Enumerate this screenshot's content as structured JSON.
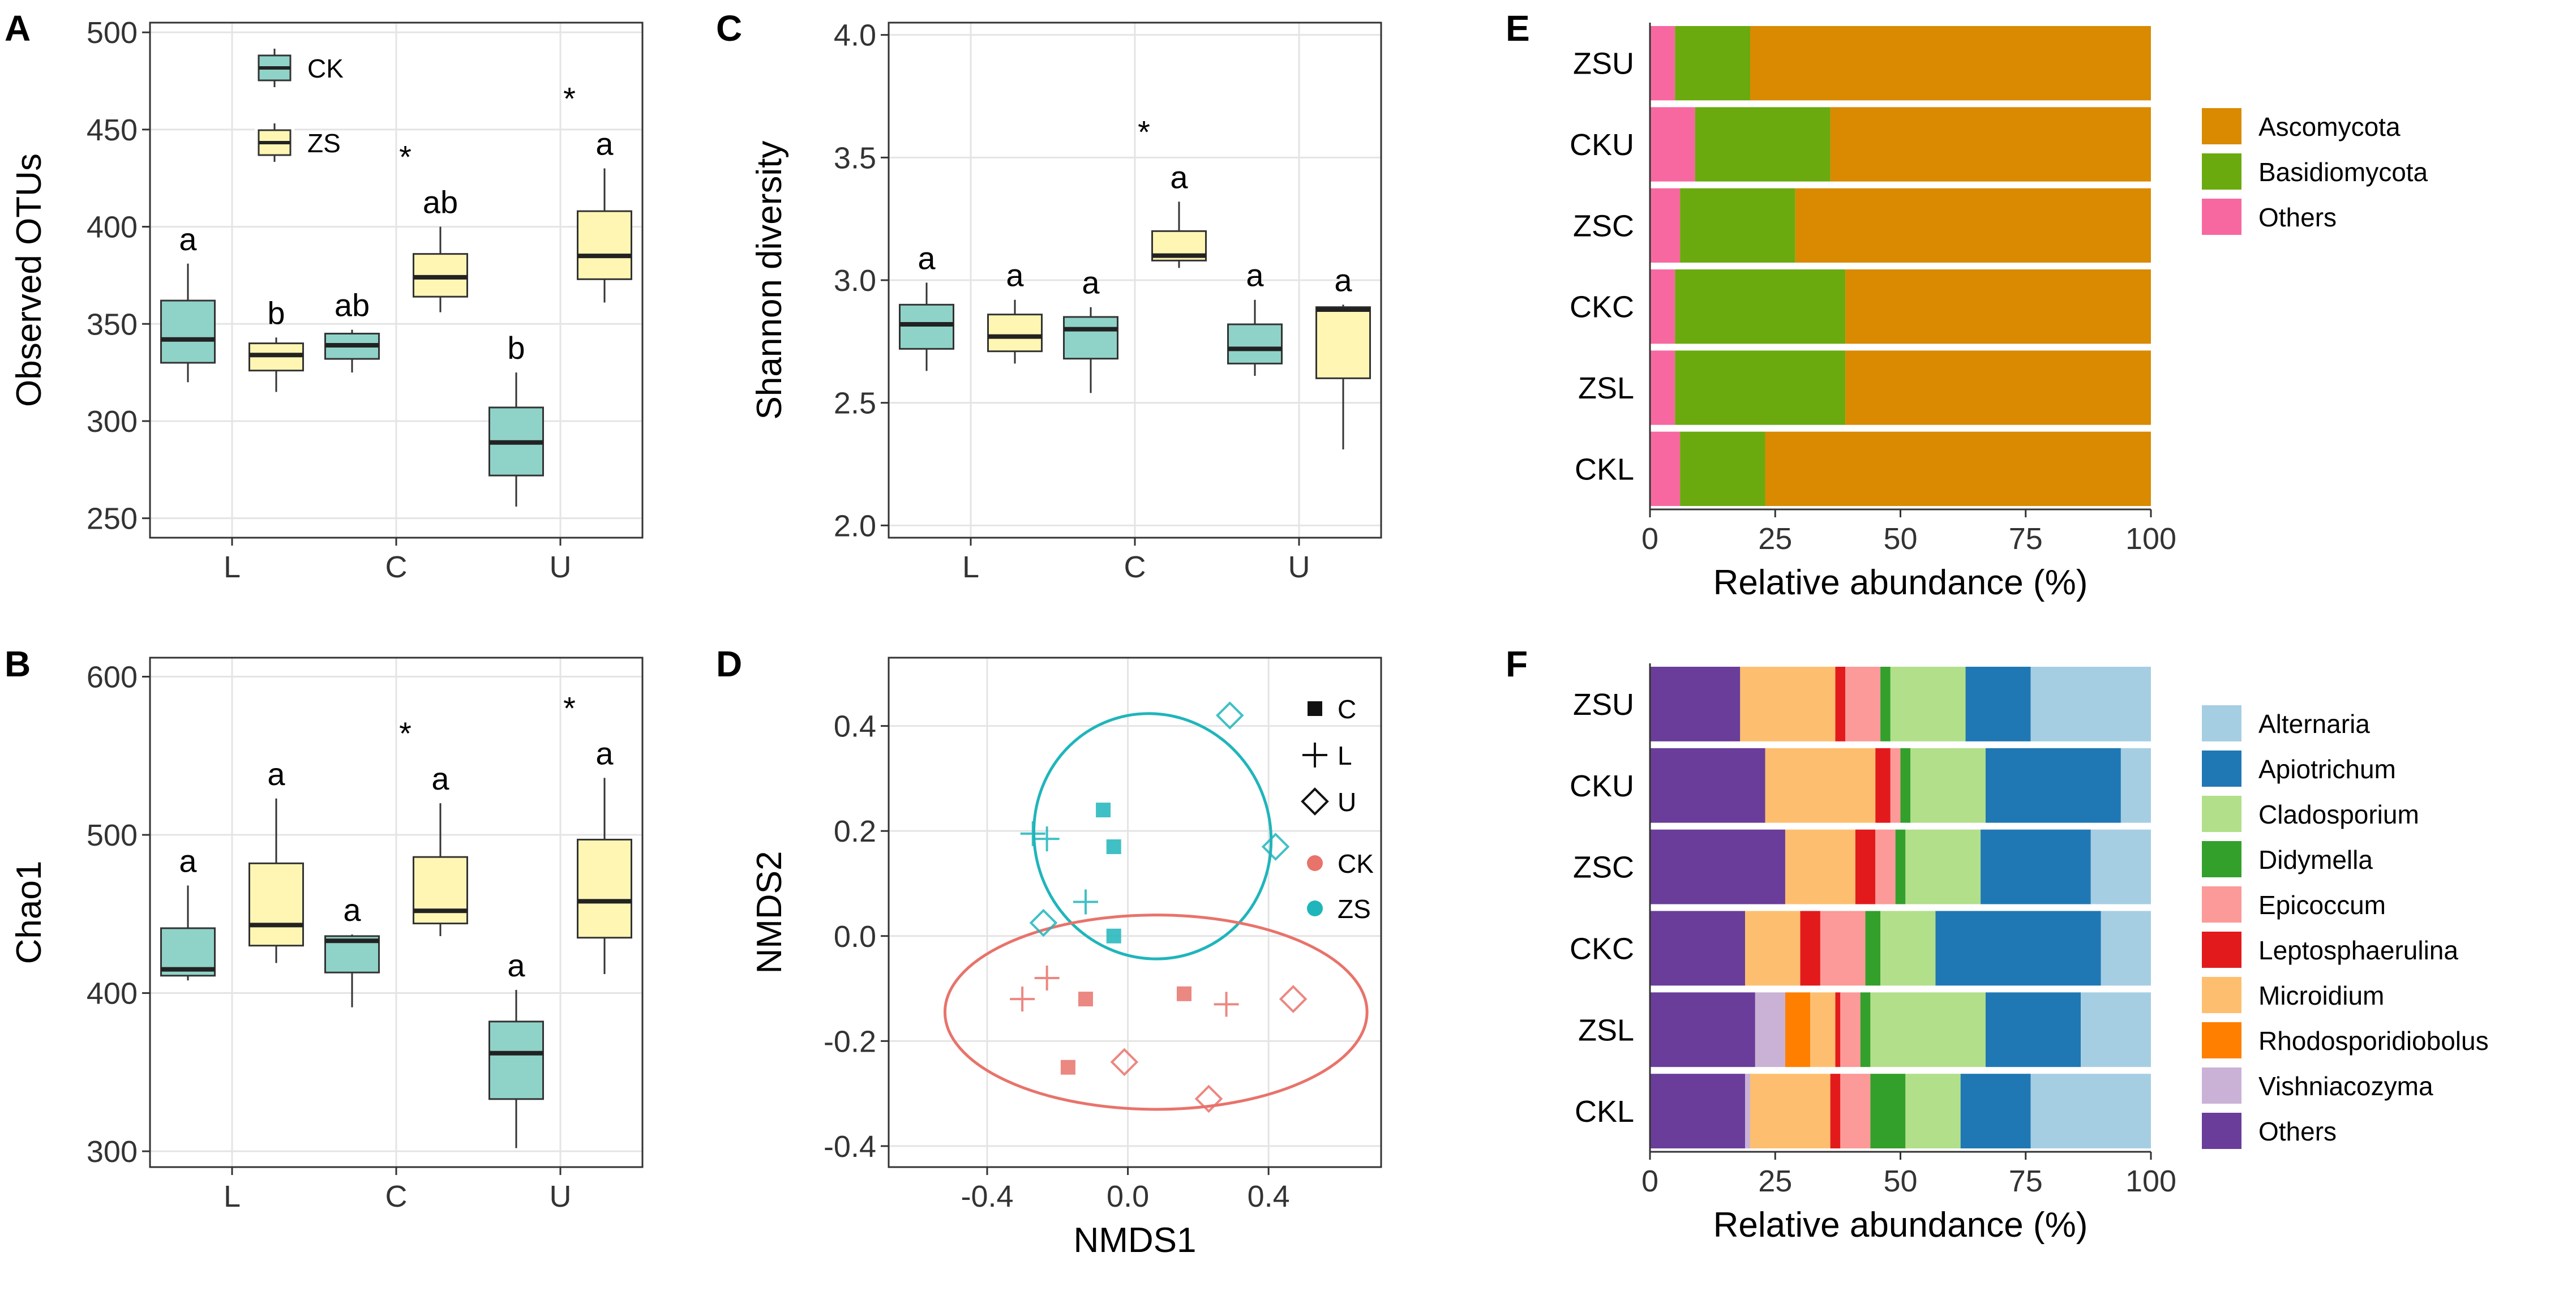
{
  "chart_data": [
    {
      "panel": "A",
      "type": "boxplot",
      "ylabel": "Observed OTUs",
      "xlabel": "",
      "categories": [
        "L",
        "C",
        "U"
      ],
      "ylim": [
        240,
        505
      ],
      "yticks": [
        250,
        300,
        350,
        400,
        450,
        500
      ],
      "legend": {
        "position": "top-left",
        "entries": [
          "CK",
          "ZS"
        ]
      },
      "series": [
        {
          "name": "CK",
          "color": "#8fd3c8",
          "boxes": [
            {
              "category": "L",
              "min": 320,
              "q1": 330,
              "median": 342,
              "q3": 362,
              "max": 381,
              "label": "a",
              "star": false
            },
            {
              "category": "C",
              "min": 325,
              "q1": 332,
              "median": 339,
              "q3": 345,
              "max": 347,
              "label": "ab",
              "star": false
            },
            {
              "category": "U",
              "min": 256,
              "q1": 272,
              "median": 289,
              "q3": 307,
              "max": 325,
              "label": "b",
              "star": false
            }
          ]
        },
        {
          "name": "ZS",
          "color": "#fff6b3",
          "boxes": [
            {
              "category": "L",
              "min": 315,
              "q1": 326,
              "median": 334,
              "q3": 340,
              "max": 343,
              "label": "b",
              "star": false
            },
            {
              "category": "C",
              "min": 356,
              "q1": 364,
              "median": 374,
              "q3": 386,
              "max": 400,
              "label": "ab",
              "star": true
            },
            {
              "category": "U",
              "min": 361,
              "q1": 373,
              "median": 385,
              "q3": 408,
              "max": 430,
              "label": "a",
              "star": true
            }
          ]
        }
      ]
    },
    {
      "panel": "B",
      "type": "boxplot",
      "ylabel": "Chao1",
      "xlabel": "",
      "categories": [
        "L",
        "C",
        "U"
      ],
      "ylim": [
        290,
        612
      ],
      "yticks": [
        300,
        400,
        500,
        600
      ],
      "series": [
        {
          "name": "CK",
          "color": "#8fd3c8",
          "boxes": [
            {
              "category": "L",
              "min": 408,
              "q1": 411,
              "median": 415,
              "q3": 441,
              "max": 468,
              "label": "a",
              "star": false
            },
            {
              "category": "C",
              "min": 391,
              "q1": 413,
              "median": 433,
              "q3": 436,
              "max": 437,
              "label": "a",
              "star": false
            },
            {
              "category": "U",
              "min": 302,
              "q1": 333,
              "median": 362,
              "q3": 382,
              "max": 402,
              "label": "a",
              "star": false
            }
          ]
        },
        {
          "name": "ZS",
          "color": "#fff6b3",
          "boxes": [
            {
              "category": "L",
              "min": 419,
              "q1": 430,
              "median": 443,
              "q3": 482,
              "max": 523,
              "label": "a",
              "star": false
            },
            {
              "category": "C",
              "min": 436,
              "q1": 444,
              "median": 452,
              "q3": 486,
              "max": 520,
              "label": "a",
              "star": true
            },
            {
              "category": "U",
              "min": 412,
              "q1": 435,
              "median": 458,
              "q3": 497,
              "max": 536,
              "label": "a",
              "star": true
            }
          ]
        }
      ]
    },
    {
      "panel": "C",
      "type": "boxplot",
      "ylabel": "Shannon diversity",
      "xlabel": "",
      "categories": [
        "L",
        "C",
        "U"
      ],
      "ylim": [
        1.95,
        4.05
      ],
      "yticks": [
        "2.0",
        "2.5",
        "3.0",
        "3.5",
        "4.0"
      ],
      "series": [
        {
          "name": "CK",
          "color": "#8fd3c8",
          "boxes": [
            {
              "category": "L",
              "min": 2.63,
              "q1": 2.72,
              "median": 2.82,
              "q3": 2.9,
              "max": 2.99,
              "label": "a",
              "star": false
            },
            {
              "category": "C",
              "min": 2.54,
              "q1": 2.68,
              "median": 2.8,
              "q3": 2.85,
              "max": 2.89,
              "label": "a",
              "star": false
            },
            {
              "category": "U",
              "min": 2.61,
              "q1": 2.66,
              "median": 2.72,
              "q3": 2.82,
              "max": 2.92,
              "label": "a",
              "star": false
            }
          ]
        },
        {
          "name": "ZS",
          "color": "#fff6b3",
          "boxes": [
            {
              "category": "L",
              "min": 2.66,
              "q1": 2.71,
              "median": 2.77,
              "q3": 2.86,
              "max": 2.92,
              "label": "a",
              "star": false
            },
            {
              "category": "C",
              "min": 3.05,
              "q1": 3.08,
              "median": 3.1,
              "q3": 3.2,
              "max": 3.32,
              "label": "a",
              "star": true
            },
            {
              "category": "U",
              "min": 2.31,
              "q1": 2.6,
              "median": 2.88,
              "q3": 2.89,
              "max": 2.9,
              "label": "a",
              "star": false
            }
          ]
        }
      ]
    },
    {
      "panel": "D",
      "type": "scatter",
      "xlabel": "NMDS1",
      "ylabel": "NMDS2",
      "xlim": [
        -0.68,
        0.72
      ],
      "ylim": [
        -0.44,
        0.53
      ],
      "xticks": [
        "-0.4",
        "0.0",
        "0.4"
      ],
      "yticks": [
        "-0.4",
        "-0.2",
        "0.0",
        "0.2",
        "0.4"
      ],
      "legend_shape": {
        "title": "",
        "entries": [
          "C",
          "L",
          "U"
        ]
      },
      "legend_color": {
        "entries": [
          "CK",
          "ZS"
        ],
        "colors": [
          "#e8736b",
          "#1fb5bb"
        ]
      },
      "points": [
        {
          "group": "ZS",
          "shape": "C",
          "x": -0.07,
          "y": 0.24
        },
        {
          "group": "ZS",
          "shape": "C",
          "x": -0.04,
          "y": 0.17
        },
        {
          "group": "ZS",
          "shape": "C",
          "x": -0.04,
          "y": 0.0
        },
        {
          "group": "ZS",
          "shape": "L",
          "x": -0.27,
          "y": 0.195
        },
        {
          "group": "ZS",
          "shape": "L",
          "x": -0.23,
          "y": 0.185
        },
        {
          "group": "ZS",
          "shape": "L",
          "x": -0.12,
          "y": 0.065
        },
        {
          "group": "ZS",
          "shape": "U",
          "x": 0.29,
          "y": 0.42
        },
        {
          "group": "ZS",
          "shape": "U",
          "x": 0.42,
          "y": 0.17
        },
        {
          "group": "ZS",
          "shape": "U",
          "x": -0.24,
          "y": 0.025
        },
        {
          "group": "CK",
          "shape": "C",
          "x": -0.12,
          "y": -0.12
        },
        {
          "group": "CK",
          "shape": "C",
          "x": 0.16,
          "y": -0.11
        },
        {
          "group": "CK",
          "shape": "C",
          "x": -0.17,
          "y": -0.25
        },
        {
          "group": "CK",
          "shape": "L",
          "x": -0.3,
          "y": -0.12
        },
        {
          "group": "CK",
          "shape": "L",
          "x": -0.23,
          "y": -0.08
        },
        {
          "group": "CK",
          "shape": "L",
          "x": 0.28,
          "y": -0.13
        },
        {
          "group": "CK",
          "shape": "U",
          "x": -0.01,
          "y": -0.24
        },
        {
          "group": "CK",
          "shape": "U",
          "x": 0.23,
          "y": -0.31
        },
        {
          "group": "CK",
          "shape": "U",
          "x": 0.47,
          "y": -0.12
        }
      ],
      "ellipses": [
        {
          "group": "ZS",
          "cx": 0.07,
          "cy": 0.19,
          "rx": 0.335,
          "ry": 0.235,
          "angle": -22
        },
        {
          "group": "CK",
          "cx": 0.08,
          "cy": -0.145,
          "rx": 0.6,
          "ry": 0.185,
          "angle": 0
        }
      ]
    },
    {
      "panel": "E",
      "type": "bar",
      "orientation": "horizontal",
      "stacked": true,
      "xlabel": "Relative abundance (%)",
      "ylabel": "",
      "xlim": [
        0,
        100
      ],
      "xticks": [
        0,
        25,
        50,
        75,
        100
      ],
      "categories": [
        "ZSU",
        "CKU",
        "ZSC",
        "CKC",
        "ZSL",
        "CKL"
      ],
      "series": [
        {
          "name": "Others",
          "color": "#f768a1",
          "values": [
            5,
            9,
            6,
            5,
            5,
            6
          ]
        },
        {
          "name": "Basidiomycota",
          "color": "#6aaa0e",
          "values": [
            15,
            27,
            23,
            34,
            34,
            17
          ]
        },
        {
          "name": "Ascomycota",
          "color": "#d98a00",
          "values": [
            80,
            64,
            71,
            61,
            61,
            77
          ]
        }
      ],
      "legend_order": [
        "Ascomycota",
        "Basidiomycota",
        "Others"
      ]
    },
    {
      "panel": "F",
      "type": "bar",
      "orientation": "horizontal",
      "stacked": true,
      "xlabel": "Relative abundance (%)",
      "ylabel": "",
      "xlim": [
        0,
        100
      ],
      "xticks": [
        0,
        25,
        50,
        75,
        100
      ],
      "categories": [
        "ZSU",
        "CKU",
        "ZSC",
        "CKC",
        "ZSL",
        "CKL"
      ],
      "series": [
        {
          "name": "Others",
          "color": "#6a3d9a",
          "values": [
            18,
            23,
            27,
            19,
            21,
            19
          ]
        },
        {
          "name": "Vishniacozyma",
          "color": "#cab2d6",
          "values": [
            0,
            0,
            0,
            0,
            6,
            1
          ]
        },
        {
          "name": "Rhodosporidiobolus",
          "color": "#ff7f00",
          "values": [
            0,
            0,
            0,
            0,
            5,
            0
          ]
        },
        {
          "name": "Microidium",
          "color": "#fdbf6f",
          "values": [
            19,
            22,
            14,
            11,
            5,
            16
          ]
        },
        {
          "name": "Leptosphaerulina",
          "color": "#e31a1c",
          "values": [
            2,
            3,
            4,
            4,
            1,
            2
          ]
        },
        {
          "name": "Epicoccum",
          "color": "#fb9a99",
          "values": [
            7,
            2,
            4,
            9,
            4,
            6
          ]
        },
        {
          "name": "Didymella",
          "color": "#33a02c",
          "values": [
            2,
            2,
            2,
            3,
            2,
            7
          ]
        },
        {
          "name": "Cladosporium",
          "color": "#b2df8a",
          "values": [
            15,
            15,
            15,
            11,
            23,
            11
          ]
        },
        {
          "name": "Apiotrichum",
          "color": "#1f78b4",
          "values": [
            13,
            27,
            22,
            33,
            19,
            14
          ]
        },
        {
          "name": "Alternaria",
          "color": "#a6cee3",
          "values": [
            24,
            6,
            12,
            10,
            14,
            24
          ]
        }
      ],
      "legend_order": [
        "Alternaria",
        "Apiotrichum",
        "Cladosporium",
        "Didymella",
        "Epicoccum",
        "Leptosphaerulina",
        "Microidium",
        "Rhodosporidiobolus",
        "Vishniacozyma",
        "Others"
      ]
    }
  ]
}
